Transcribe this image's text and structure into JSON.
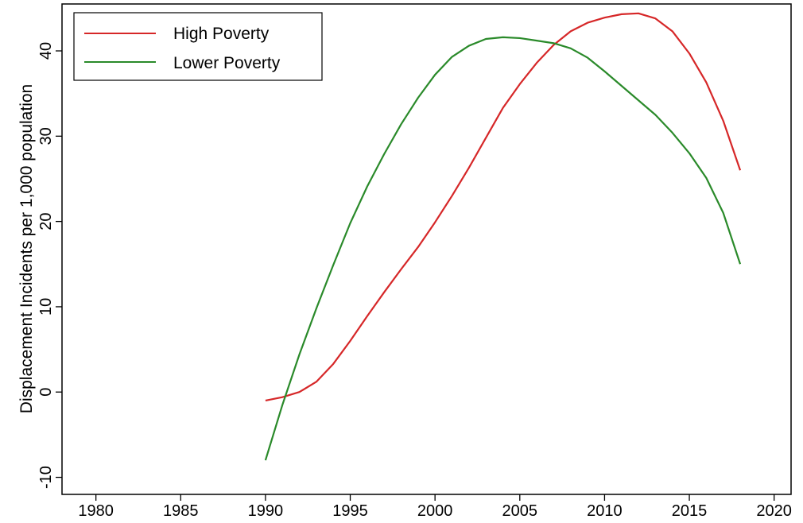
{
  "chart_data": {
    "type": "line",
    "title": "",
    "xlabel": "",
    "ylabel": "Displacement Incidents per 1,000 population",
    "xlim": [
      1978,
      2021
    ],
    "ylim": [
      -12,
      45.5
    ],
    "xticks": [
      1980,
      1985,
      1990,
      1995,
      2000,
      2005,
      2010,
      2015,
      2020
    ],
    "yticks": [
      -10,
      0,
      10,
      20,
      30,
      40
    ],
    "grid": false,
    "legend_position": "top-left",
    "series": [
      {
        "name": "High Poverty",
        "color": "#d62728",
        "x": [
          1990,
          1991,
          1992,
          1993,
          1994,
          1995,
          1996,
          1997,
          1998,
          1999,
          2000,
          2001,
          2002,
          2003,
          2004,
          2005,
          2006,
          2007,
          2008,
          2009,
          2010,
          2011,
          2012,
          2013,
          2014,
          2015,
          2016,
          2017,
          2018
        ],
        "y": [
          -1.0,
          -0.6,
          0.0,
          1.2,
          3.3,
          6.0,
          8.9,
          11.7,
          14.4,
          17.0,
          19.9,
          23.0,
          26.3,
          29.8,
          33.3,
          36.1,
          38.6,
          40.7,
          42.3,
          43.3,
          43.9,
          44.3,
          44.4,
          43.8,
          42.3,
          39.7,
          36.3,
          31.8,
          26.0
        ]
      },
      {
        "name": "Lower Poverty",
        "color": "#2a8a2a",
        "x": [
          1990,
          1991,
          1992,
          1993,
          1994,
          1995,
          1996,
          1997,
          1998,
          1999,
          2000,
          2001,
          2002,
          2003,
          2004,
          2005,
          2006,
          2007,
          2008,
          2009,
          2010,
          2011,
          2012,
          2013,
          2014,
          2015,
          2016,
          2017,
          2018
        ],
        "y": [
          -8.0,
          -1.5,
          4.4,
          9.8,
          14.9,
          19.8,
          24.1,
          27.9,
          31.4,
          34.5,
          37.2,
          39.3,
          40.6,
          41.4,
          41.6,
          41.5,
          41.2,
          40.9,
          40.3,
          39.2,
          37.6,
          35.9,
          34.2,
          32.5,
          30.4,
          28.0,
          25.1,
          21.0,
          15.0
        ]
      }
    ]
  }
}
